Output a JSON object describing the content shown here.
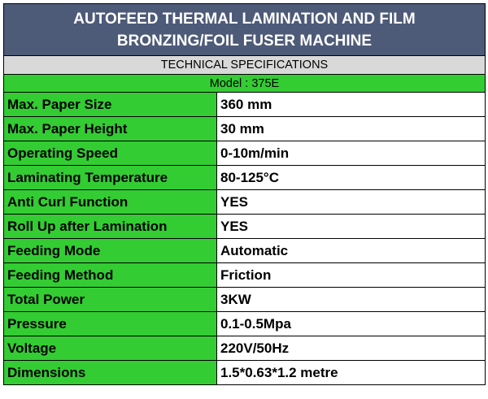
{
  "header": {
    "title_line1": "AUTOFEED THERMAL LAMINATION AND FILM",
    "title_line2": "BRONZING/FOIL FUSER MACHINE",
    "section": "TECHNICAL SPECIFICATIONS",
    "model": "Model : 375E"
  },
  "colors": {
    "title_bg": "#4d5a78",
    "section_bg": "#d9d9d9",
    "accent_green": "#33cc33"
  },
  "specs": [
    {
      "label": "Max. Paper Size",
      "value": "360 mm"
    },
    {
      "label": "Max. Paper Height",
      "value": "30 mm"
    },
    {
      "label": "Operating Speed",
      "value": "0-10m/min"
    },
    {
      "label": "Laminating Temperature",
      "value": "80-125°C"
    },
    {
      "label": "Anti Curl Function",
      "value": "YES"
    },
    {
      "label": "Roll Up after Lamination",
      "value": "YES"
    },
    {
      "label": "Feeding Mode",
      "value": "Automatic"
    },
    {
      "label": "Feeding Method",
      "value": "Friction"
    },
    {
      "label": "Total Power",
      "value": "3KW"
    },
    {
      "label": "Pressure",
      "value": "0.1-0.5Mpa"
    },
    {
      "label": "Voltage",
      "value": "220V/50Hz"
    },
    {
      "label": "Dimensions",
      "value": "1.5*0.63*1.2 metre"
    }
  ]
}
